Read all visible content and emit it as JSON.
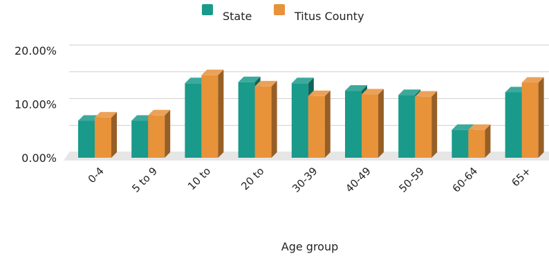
{
  "chart_data": {
    "type": "bar",
    "title": "",
    "xlabel": "Age group",
    "ylabel": "",
    "categories": [
      "0-4",
      "5 to 9",
      "10 to",
      "20 to",
      "30-39",
      "40-49",
      "50-59",
      "60-64",
      "65+"
    ],
    "series": [
      {
        "name": "State",
        "color": "#1a9a8a",
        "values": [
          6.9,
          6.9,
          13.9,
          14.1,
          13.9,
          12.5,
          11.7,
          5.2,
          12.2
        ]
      },
      {
        "name": "Titus County",
        "color": "#e8923a",
        "values": [
          7.5,
          7.9,
          15.4,
          13.3,
          11.5,
          11.8,
          11.4,
          5.2,
          14.0
        ]
      }
    ],
    "ylim": [
      0,
      20
    ],
    "yticks": [
      0,
      10,
      20
    ],
    "ytick_labels": [
      "0.00%",
      "10.00%",
      "20.00%"
    ],
    "grid": true,
    "legend": "top-center",
    "style": "3d-column"
  }
}
